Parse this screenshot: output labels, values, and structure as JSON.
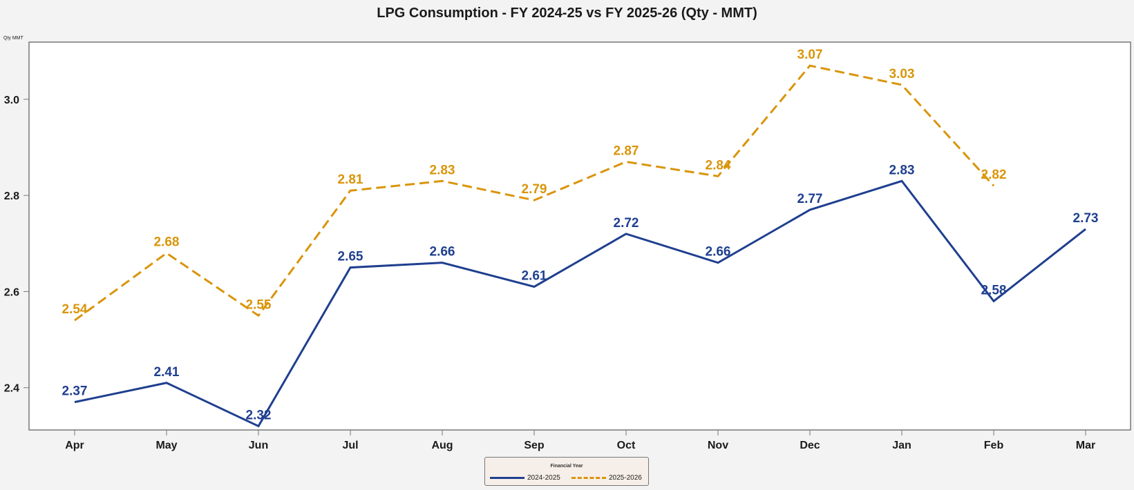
{
  "chart_data": {
    "type": "line",
    "title": "LPG Consumption - FY 2024-25 vs FY 2025-26 (Qty - MMT)",
    "xlabel": "",
    "ylabel": "Qty MMT",
    "categories": [
      "Apr",
      "May",
      "Jun",
      "Jul",
      "Aug",
      "Sep",
      "Oct",
      "Nov",
      "Dec",
      "Jan",
      "Feb",
      "Mar"
    ],
    "ylim": [
      2.312,
      3.119
    ],
    "yticks": [
      2.4,
      2.6,
      2.8,
      3.0
    ],
    "ytick_labels": [
      "2.4",
      "2.6",
      "2.8",
      "3.0"
    ],
    "grid": false,
    "legend_title": "Financial Year",
    "legend_position": "bottom-center",
    "series": [
      {
        "name": "2024-2025",
        "color": "#1f3f8f",
        "style": "solid",
        "values": [
          2.37,
          2.41,
          2.32,
          2.65,
          2.66,
          2.61,
          2.72,
          2.66,
          2.77,
          2.83,
          2.58,
          2.73
        ],
        "labels": [
          "2.37",
          "2.41",
          "2.32",
          "2.65",
          "2.66",
          "2.61",
          "2.72",
          "2.66",
          "2.77",
          "2.83",
          "2.58",
          "2.73"
        ]
      },
      {
        "name": "2025-2026",
        "color": "#d9950a",
        "style": "dashed",
        "values": [
          2.54,
          2.68,
          2.55,
          2.81,
          2.83,
          2.79,
          2.87,
          2.84,
          3.07,
          3.03,
          2.82,
          null
        ],
        "labels": [
          "2.54",
          "2.68",
          "2.55",
          "2.81",
          "2.83",
          "2.79",
          "2.87",
          "2.84",
          "3.07",
          "3.03",
          "2.82",
          null
        ]
      }
    ]
  }
}
